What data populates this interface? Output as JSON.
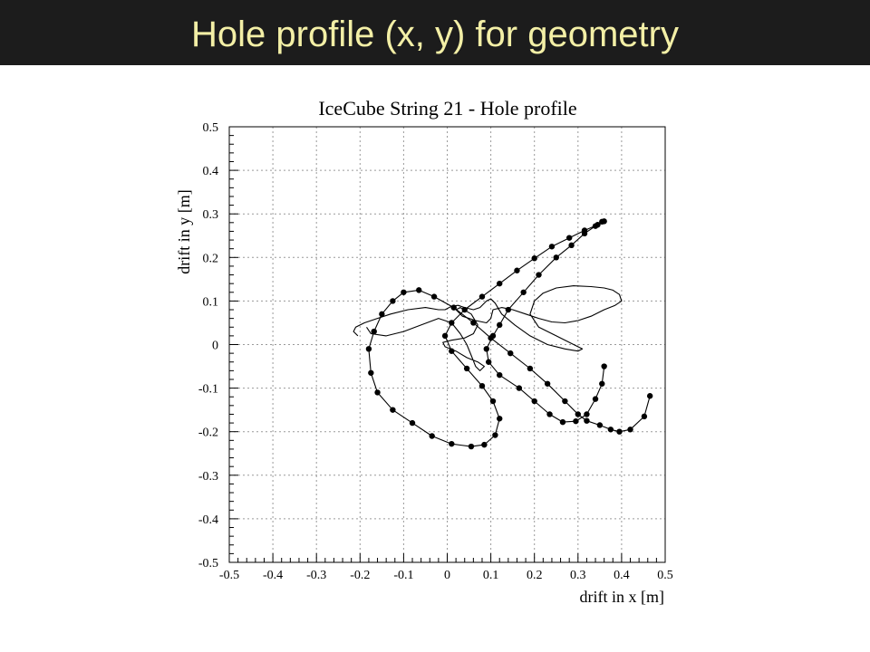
{
  "slide": {
    "title": "Hole profile (x, y) for geometry",
    "title_color": "#f3efa6",
    "header_background": "#1c1c1c"
  },
  "chart_data": {
    "type": "line",
    "title": "IceCube String 21 - Hole profile",
    "xlabel": "drift in x [m]",
    "ylabel": "drift in y [m]",
    "xlim": [
      -0.5,
      0.5
    ],
    "ylim": [
      -0.5,
      0.5
    ],
    "xticks": [
      "-0.5",
      "-0.4",
      "-0.3",
      "-0.2",
      "-0.1",
      "0",
      "0.1",
      "0.2",
      "0.3",
      "0.4",
      "0.5"
    ],
    "yticks": [
      "0.5",
      "0.4",
      "0.3",
      "0.2",
      "0.1",
      "0",
      "-0.1",
      "-0.2",
      "-0.3",
      "-0.4",
      "-0.5"
    ],
    "grid": true,
    "series": [
      {
        "style": "markers-and-line",
        "color": "#000000",
        "x": [
          0.465,
          0.452,
          0.42,
          0.395,
          0.375,
          0.35,
          0.32,
          0.3,
          0.27,
          0.23,
          0.19,
          0.145,
          0.1,
          0.06,
          0.015,
          -0.03,
          -0.065,
          -0.1,
          -0.125,
          -0.15,
          -0.168,
          -0.18,
          -0.175,
          -0.16,
          -0.125,
          -0.08,
          -0.035,
          0.01,
          0.055,
          0.085,
          0.11,
          0.12,
          0.105,
          0.08,
          0.045,
          0.01,
          -0.005,
          0.01,
          0.04,
          0.08,
          0.12,
          0.16,
          0.2,
          0.24,
          0.28,
          0.315,
          0.345,
          0.36,
          0.355,
          0.34,
          0.315,
          0.285,
          0.25,
          0.21,
          0.175,
          0.14,
          0.12,
          0.105,
          0.09,
          0.095,
          0.12,
          0.165,
          0.2,
          0.235,
          0.265,
          0.295,
          0.32,
          0.34,
          0.355,
          0.36
        ],
        "y": [
          -0.118,
          -0.165,
          -0.195,
          -0.2,
          -0.195,
          -0.185,
          -0.175,
          -0.16,
          -0.13,
          -0.09,
          -0.055,
          -0.02,
          0.015,
          0.05,
          0.085,
          0.11,
          0.125,
          0.12,
          0.1,
          0.07,
          0.03,
          -0.01,
          -0.065,
          -0.11,
          -0.15,
          -0.18,
          -0.21,
          -0.228,
          -0.234,
          -0.23,
          -0.208,
          -0.17,
          -0.13,
          -0.095,
          -0.055,
          -0.015,
          0.02,
          0.05,
          0.08,
          0.11,
          0.14,
          0.17,
          0.198,
          0.225,
          0.245,
          0.262,
          0.275,
          0.283,
          0.282,
          0.272,
          0.255,
          0.228,
          0.2,
          0.16,
          0.12,
          0.08,
          0.045,
          0.02,
          -0.01,
          -0.04,
          -0.07,
          -0.1,
          -0.13,
          -0.16,
          -0.178,
          -0.176,
          -0.16,
          -0.125,
          -0.09,
          -0.05
        ]
      },
      {
        "style": "line",
        "color": "#000000",
        "x": [
          -0.185,
          -0.175,
          -0.14,
          -0.1,
          -0.06,
          -0.02,
          0.01,
          0.03,
          0.045,
          0.055,
          0.065,
          0.075,
          0.085,
          0.07,
          0.045,
          0.02,
          -0.005,
          -0.01,
          0.01,
          0.04,
          0.06,
          0.07,
          0.055,
          0.03,
          0.02,
          0.035,
          0.065,
          0.09,
          0.1,
          0.105,
          0.125,
          0.15,
          0.18,
          0.21,
          0.24,
          0.27,
          0.3,
          0.33,
          0.36,
          0.385,
          0.4,
          0.395,
          0.38,
          0.36,
          0.33,
          0.29,
          0.25,
          0.22,
          0.2,
          0.19,
          0.21,
          0.25,
          0.29,
          0.31,
          0.3,
          0.27,
          0.23,
          0.19,
          0.155,
          0.125,
          0.11,
          0.1,
          0.09,
          0.075,
          0.06,
          0.04,
          0.025,
          0.01,
          -0.005,
          -0.02,
          -0.05,
          -0.09,
          -0.13,
          -0.16,
          -0.19,
          -0.21,
          -0.215,
          -0.205
        ],
        "y": [
          0.04,
          0.025,
          0.02,
          0.03,
          0.045,
          0.06,
          0.05,
          0.025,
          0.0,
          -0.025,
          -0.05,
          -0.06,
          -0.05,
          -0.04,
          -0.03,
          -0.015,
          -0.005,
          0.005,
          0.01,
          0.015,
          0.025,
          0.045,
          0.07,
          0.085,
          0.08,
          0.065,
          0.055,
          0.05,
          0.06,
          0.08,
          0.085,
          0.08,
          0.07,
          0.06,
          0.052,
          0.05,
          0.055,
          0.065,
          0.08,
          0.09,
          0.1,
          0.115,
          0.125,
          0.13,
          0.133,
          0.135,
          0.13,
          0.118,
          0.1,
          0.07,
          0.04,
          0.02,
          0.0,
          -0.01,
          -0.015,
          -0.01,
          0.0,
          0.02,
          0.045,
          0.07,
          0.095,
          0.105,
          0.1,
          0.085,
          0.08,
          0.085,
          0.09,
          0.088,
          0.08,
          0.08,
          0.085,
          0.08,
          0.07,
          0.06,
          0.05,
          0.04,
          0.03,
          0.02
        ]
      }
    ]
  }
}
